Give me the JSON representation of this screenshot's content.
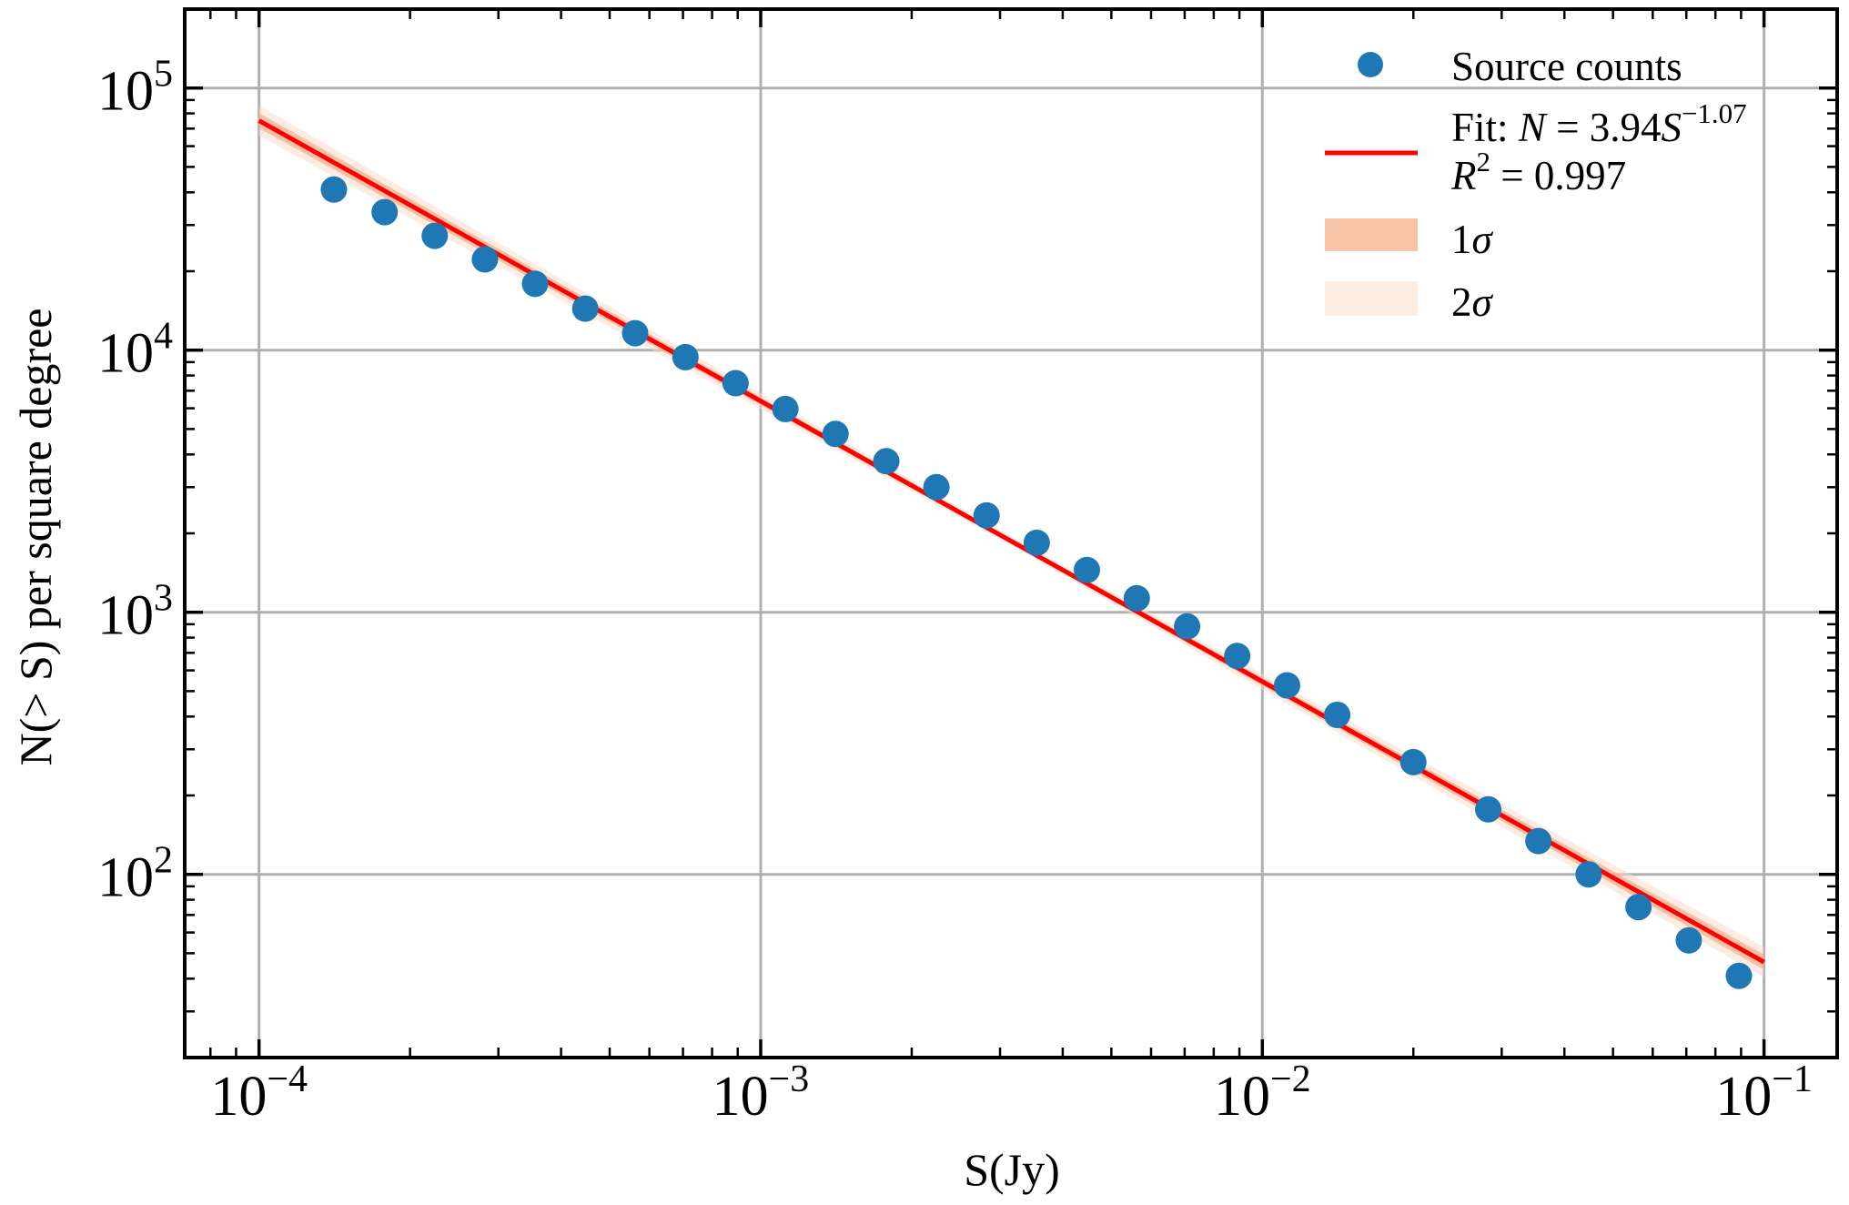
{
  "chart_data": {
    "type": "scatter",
    "xscale": "log",
    "yscale": "log",
    "xlabel": "S(Jy)",
    "ylabel": "N(> S) per square degree",
    "xlim": [
      7.11e-05,
      0.1399
    ],
    "ylim": [
      20,
      200000
    ],
    "grid": true,
    "legend_position": "top-right",
    "x_ticks": [
      {
        "value": 0.0001,
        "base": "10",
        "exp": "−4"
      },
      {
        "value": 0.001,
        "base": "10",
        "exp": "−3"
      },
      {
        "value": 0.01,
        "base": "10",
        "exp": "−2"
      },
      {
        "value": 0.1,
        "base": "10",
        "exp": "−1"
      }
    ],
    "y_ticks": [
      {
        "value": 100,
        "base": "10",
        "exp": "2"
      },
      {
        "value": 1000,
        "base": "10",
        "exp": "3"
      },
      {
        "value": 10000,
        "base": "10",
        "exp": "4"
      },
      {
        "value": 100000,
        "base": "10",
        "exp": "5"
      }
    ],
    "series": [
      {
        "name": "Source counts",
        "kind": "scatter",
        "color": "#1f77b4",
        "x": [
          0.000141,
          0.000178,
          0.000224,
          0.000282,
          0.000355,
          0.000447,
          0.000562,
          0.000708,
          0.000891,
          0.00112,
          0.00141,
          0.00178,
          0.00224,
          0.00282,
          0.00355,
          0.00447,
          0.00562,
          0.00708,
          0.00891,
          0.0112,
          0.0141,
          0.02,
          0.0282,
          0.0355,
          0.0447,
          0.0562,
          0.0708,
          0.0891
        ],
        "y": [
          41000,
          33600,
          27300,
          22200,
          17900,
          14400,
          11600,
          9400,
          7480,
          5960,
          4790,
          3770,
          3000,
          2340,
          1840,
          1450,
          1130,
          883,
          681,
          526,
          406,
          268,
          177,
          134,
          100,
          75,
          56,
          41
        ]
      },
      {
        "name": "Fit",
        "kind": "line",
        "color": "#ff0000",
        "amplitude": 3.94,
        "exponent": -1.07,
        "r_squared": 0.997,
        "x_range": [
          0.0001,
          0.1
        ]
      }
    ],
    "bands": [
      {
        "name": "1σ",
        "color": "#f4a582",
        "opacity": 0.6,
        "legend_color": "#f7c4a7"
      },
      {
        "name": "2σ",
        "color": "#fbd9c4",
        "opacity": 0.5,
        "legend_color": "#fcede2"
      }
    ],
    "legend": {
      "source_counts": "Source counts",
      "fit_prefix": "Fit: ",
      "fit_N": "N",
      "fit_eq": " = 3.94",
      "fit_S": "S",
      "fit_exp": "−1.07",
      "r2_R": "R",
      "r2_sup": "2",
      "r2_eq": " = 0.997",
      "one_sigma_num": "1",
      "two_sigma_num": "2",
      "sigma": "σ"
    }
  }
}
